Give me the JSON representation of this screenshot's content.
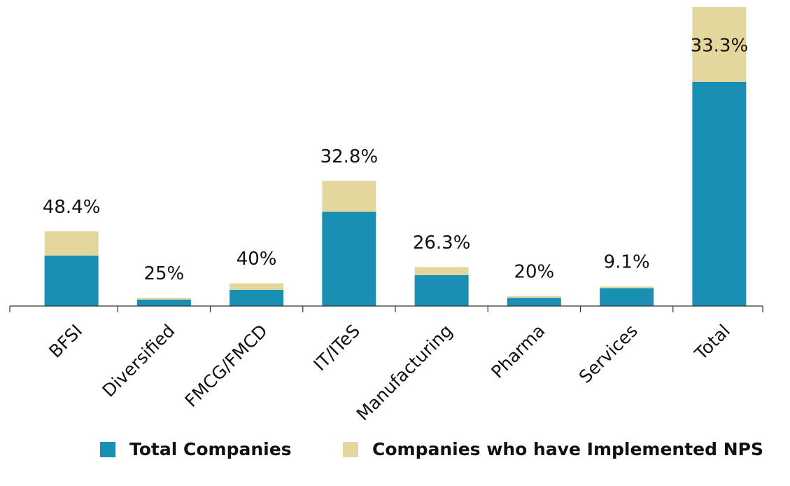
{
  "chart_data": {
    "type": "stacked_bar",
    "categories": [
      "BFSI",
      "Diversified",
      "FMCG/FMCD",
      "IT/ITeS",
      "Manufacturing",
      "Pharma",
      "Services",
      "Total"
    ],
    "series": [
      {
        "name": "Total Companies",
        "color": "#1a8fb4",
        "values": [
          31,
          4,
          10,
          58,
          19,
          5,
          11,
          138
        ]
      },
      {
        "name": "Companies who have Implemented NPS",
        "color": "#e3d79e",
        "values": [
          15,
          1,
          4,
          19,
          5,
          1,
          1,
          46
        ]
      }
    ],
    "annotations": [
      "48.4%",
      "25%",
      "40%",
      "32.8%",
      "26.3%",
      "20%",
      "9.1%",
      "33.3%"
    ],
    "ylim": [
      0,
      184
    ]
  }
}
